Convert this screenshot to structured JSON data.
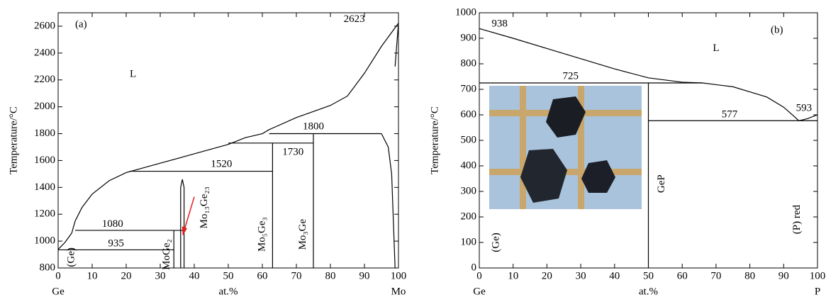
{
  "chart_data": [
    {
      "type": "phase",
      "panel": "(a)",
      "ylabel": "Temperature/°C",
      "xlabel": "at.%",
      "x_left": "Ge",
      "x_right": "Mo",
      "xlim": [
        0,
        100
      ],
      "ylim": [
        800,
        2700
      ],
      "xticks": [
        0,
        10,
        20,
        30,
        40,
        50,
        60,
        70,
        80,
        90,
        100
      ],
      "yticks": [
        800,
        1000,
        1200,
        1400,
        1600,
        1800,
        2000,
        2200,
        2400,
        2600
      ],
      "series": [
        {
          "color": "#000000",
          "x": [
            0,
            2,
            4,
            5,
            7,
            10,
            15,
            20,
            30,
            40,
            50,
            55,
            60,
            62,
            70,
            80,
            85,
            90,
            95,
            100
          ],
          "values": [
            938,
            990,
            1060,
            1150,
            1250,
            1350,
            1450,
            1510,
            1580,
            1650,
            1720,
            1770,
            1800,
            1830,
            1920,
            2010,
            2080,
            2250,
            2450,
            2623
          ]
        },
        {
          "color": "#000000",
          "x": [
            0,
            34
          ],
          "values": [
            935,
            935
          ]
        },
        {
          "color": "#000000",
          "x": [
            5,
            37
          ],
          "values": [
            1080,
            1080
          ]
        },
        {
          "color": "#000000",
          "x": [
            21,
            63
          ],
          "values": [
            1520,
            1520
          ]
        },
        {
          "color": "#000000",
          "x": [
            50,
            75
          ],
          "values": [
            1730,
            1730
          ]
        },
        {
          "color": "#000000",
          "x": [
            62,
            95
          ],
          "values": [
            1800,
            1800
          ]
        },
        {
          "color": "#000000",
          "x": [
            34,
            34
          ],
          "values": [
            800,
            1080
          ]
        },
        {
          "color": "#000000",
          "x": [
            36,
            36,
            36.5,
            37,
            37
          ],
          "values": [
            800,
            1400,
            1460,
            1400,
            800
          ]
        },
        {
          "color": "#000000",
          "x": [
            63,
            63
          ],
          "values": [
            800,
            1730
          ]
        },
        {
          "color": "#000000",
          "x": [
            75,
            75
          ],
          "values": [
            800,
            1800
          ]
        },
        {
          "color": "#000000",
          "x": [
            95,
            97,
            98,
            99
          ],
          "values": [
            1800,
            1700,
            1500,
            800
          ]
        },
        {
          "color": "#000000",
          "x": [
            99,
            100
          ],
          "values": [
            2300,
            2623
          ]
        }
      ],
      "annotations": [
        "(a)",
        "L",
        "2623",
        "1800",
        "1730",
        "1520",
        "1080",
        "935",
        "(Ge)",
        "MoGe₂",
        "Mo₁₃Ge₂₃",
        "Mo₅Ge₃",
        "Mo₃Ge"
      ]
    },
    {
      "type": "phase",
      "panel": "(b)",
      "ylabel": "Temperature/°C",
      "xlabel": "at.%",
      "x_left": "Ge",
      "x_right": "P",
      "xlim": [
        0,
        100
      ],
      "ylim": [
        0,
        1000
      ],
      "xticks": [
        0,
        10,
        20,
        30,
        40,
        50,
        60,
        70,
        80,
        90,
        100
      ],
      "yticks": [
        0,
        100,
        200,
        300,
        400,
        500,
        600,
        700,
        800,
        900,
        1000
      ],
      "series": [
        {
          "color": "#000000",
          "x": [
            0,
            10,
            20,
            30,
            40,
            50,
            60,
            66,
            75,
            85,
            90,
            93,
            94.5,
            97,
            100
          ],
          "values": [
            938,
            900,
            860,
            820,
            780,
            745,
            728,
            725,
            710,
            670,
            630,
            595,
            577,
            585,
            600
          ]
        },
        {
          "color": "#000000",
          "x": [
            0,
            66
          ],
          "values": [
            725,
            725
          ]
        },
        {
          "color": "#000000",
          "x": [
            50,
            100
          ],
          "values": [
            577,
            577
          ]
        },
        {
          "color": "#000000",
          "x": [
            50,
            50
          ],
          "values": [
            0,
            725
          ]
        }
      ],
      "annotations": [
        "(b)",
        "L",
        "938",
        "725",
        "577",
        "593",
        "(Ge)",
        "GeP",
        "(P) red"
      ]
    }
  ]
}
